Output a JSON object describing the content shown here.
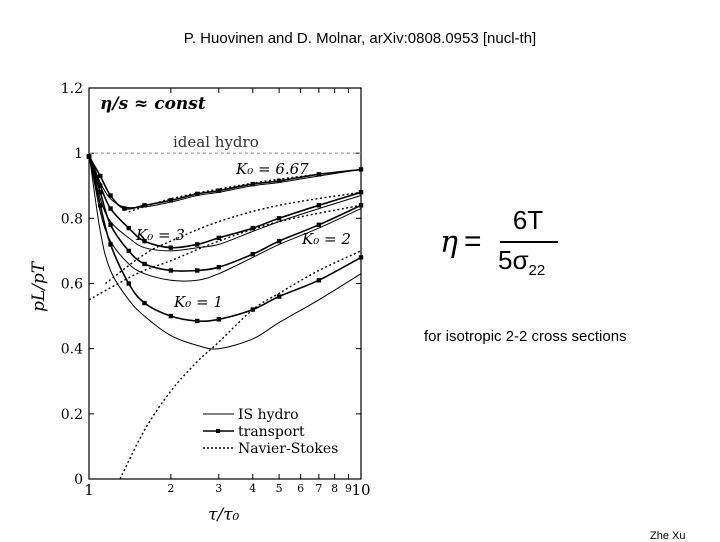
{
  "header": {
    "citation": "P. Huovinen and D. Molnar, arXiv:0808.0953 [nucl-th]"
  },
  "formula": {
    "lhs": "η",
    "eq": "=",
    "numerator": "6T",
    "denominator_base": "5σ",
    "denominator_sub": "22"
  },
  "note": "for isotropic 2-2 cross sections",
  "footer": "Zhe Xu",
  "chart_data": {
    "type": "line",
    "title": "η/s ≈ const",
    "xlabel": "τ/τ₀",
    "ylabel": "pL/pT",
    "xscale": "log",
    "xlim": [
      1,
      10
    ],
    "ylim": [
      0,
      1.2
    ],
    "x_ticks": [
      "1",
      "2",
      "3",
      "4",
      "5",
      "6",
      "7",
      "8",
      "9",
      "10"
    ],
    "y_ticks": [
      "0",
      "0.2",
      "0.4",
      "0.6",
      "0.8",
      "1",
      "1.2"
    ],
    "annotations": {
      "ideal": "ideal hydro",
      "k667": "K₀ = 6.67",
      "k3": "K₀ = 3",
      "k2": "K₀ = 2",
      "k1": "K₀ = 1"
    },
    "reference_line": {
      "y": 1,
      "label": "ideal hydro"
    },
    "legend": {
      "placement": "bottom-right",
      "entries": [
        "IS hydro",
        "transport",
        "Navier-Stokes"
      ]
    },
    "series": [
      {
        "kind": "IS hydro",
        "K0": "6.67",
        "points": [
          [
            1,
            1.0
          ],
          [
            1.1,
            0.91
          ],
          [
            1.2,
            0.86
          ],
          [
            1.35,
            0.835
          ],
          [
            1.6,
            0.835
          ],
          [
            2,
            0.85
          ],
          [
            2.5,
            0.87
          ],
          [
            3,
            0.88
          ],
          [
            4,
            0.9
          ],
          [
            5,
            0.91
          ],
          [
            7,
            0.93
          ],
          [
            10,
            0.95
          ]
        ]
      },
      {
        "kind": "transport",
        "K0": "6.67",
        "points": [
          [
            1,
            0.99
          ],
          [
            1.1,
            0.93
          ],
          [
            1.2,
            0.87
          ],
          [
            1.35,
            0.83
          ],
          [
            1.6,
            0.84
          ],
          [
            2,
            0.855
          ],
          [
            2.5,
            0.875
          ],
          [
            3,
            0.885
          ],
          [
            4,
            0.905
          ],
          [
            5,
            0.915
          ],
          [
            7,
            0.935
          ],
          [
            10,
            0.95
          ]
        ]
      },
      {
        "kind": "Navier-Stokes",
        "K0": "6.67",
        "points": [
          [
            1.4,
            0.82
          ],
          [
            2,
            0.86
          ],
          [
            3,
            0.89
          ],
          [
            5,
            0.92
          ],
          [
            10,
            0.95
          ]
        ]
      },
      {
        "kind": "IS hydro",
        "K0": "3",
        "points": [
          [
            1,
            1.0
          ],
          [
            1.1,
            0.86
          ],
          [
            1.2,
            0.79
          ],
          [
            1.4,
            0.74
          ],
          [
            1.6,
            0.71
          ],
          [
            2,
            0.7
          ],
          [
            2.5,
            0.71
          ],
          [
            3,
            0.72
          ],
          [
            4,
            0.76
          ],
          [
            5,
            0.79
          ],
          [
            7,
            0.83
          ],
          [
            10,
            0.87
          ]
        ]
      },
      {
        "kind": "transport",
        "K0": "3",
        "points": [
          [
            1,
            0.99
          ],
          [
            1.1,
            0.9
          ],
          [
            1.2,
            0.83
          ],
          [
            1.4,
            0.77
          ],
          [
            1.6,
            0.73
          ],
          [
            2,
            0.71
          ],
          [
            2.5,
            0.72
          ],
          [
            3,
            0.74
          ],
          [
            4,
            0.77
          ],
          [
            5,
            0.8
          ],
          [
            7,
            0.84
          ],
          [
            10,
            0.88
          ]
        ]
      },
      {
        "kind": "Navier-Stokes",
        "K0": "3",
        "points": [
          [
            1.15,
            0.6
          ],
          [
            1.6,
            0.69
          ],
          [
            2,
            0.73
          ],
          [
            3,
            0.79
          ],
          [
            5,
            0.84
          ],
          [
            10,
            0.88
          ]
        ]
      },
      {
        "kind": "IS hydro",
        "K0": "2",
        "points": [
          [
            1,
            1.0
          ],
          [
            1.1,
            0.82
          ],
          [
            1.2,
            0.73
          ],
          [
            1.4,
            0.66
          ],
          [
            1.6,
            0.63
          ],
          [
            2,
            0.61
          ],
          [
            2.5,
            0.61
          ],
          [
            3,
            0.63
          ],
          [
            4,
            0.68
          ],
          [
            5,
            0.72
          ],
          [
            7,
            0.77
          ],
          [
            10,
            0.83
          ]
        ]
      },
      {
        "kind": "transport",
        "K0": "2",
        "points": [
          [
            1,
            0.99
          ],
          [
            1.1,
            0.88
          ],
          [
            1.2,
            0.78
          ],
          [
            1.4,
            0.7
          ],
          [
            1.6,
            0.66
          ],
          [
            2,
            0.64
          ],
          [
            2.5,
            0.64
          ],
          [
            3,
            0.65
          ],
          [
            4,
            0.69
          ],
          [
            5,
            0.73
          ],
          [
            7,
            0.78
          ],
          [
            10,
            0.84
          ]
        ]
      },
      {
        "kind": "Navier-Stokes",
        "K0": "2",
        "points": [
          [
            1,
            0.55
          ],
          [
            1.5,
            0.63
          ],
          [
            2,
            0.67
          ],
          [
            3,
            0.73
          ],
          [
            5,
            0.79
          ],
          [
            10,
            0.84
          ]
        ]
      },
      {
        "kind": "IS hydro",
        "K0": "1",
        "points": [
          [
            1,
            1.0
          ],
          [
            1.1,
            0.76
          ],
          [
            1.2,
            0.64
          ],
          [
            1.4,
            0.55
          ],
          [
            1.6,
            0.5
          ],
          [
            2,
            0.44
          ],
          [
            2.5,
            0.41
          ],
          [
            3,
            0.4
          ],
          [
            4,
            0.43
          ],
          [
            5,
            0.48
          ],
          [
            7,
            0.55
          ],
          [
            10,
            0.63
          ]
        ]
      },
      {
        "kind": "transport",
        "K0": "1",
        "points": [
          [
            1,
            0.99
          ],
          [
            1.1,
            0.84
          ],
          [
            1.2,
            0.72
          ],
          [
            1.4,
            0.6
          ],
          [
            1.6,
            0.54
          ],
          [
            2,
            0.5
          ],
          [
            2.5,
            0.485
          ],
          [
            3,
            0.49
          ],
          [
            4,
            0.52
          ],
          [
            5,
            0.56
          ],
          [
            7,
            0.61
          ],
          [
            10,
            0.68
          ]
        ]
      },
      {
        "kind": "Navier-Stokes",
        "K0": "1",
        "points": [
          [
            1.3,
            0.0
          ],
          [
            1.6,
            0.15
          ],
          [
            2,
            0.27
          ],
          [
            2.5,
            0.36
          ],
          [
            3,
            0.42
          ],
          [
            4,
            0.52
          ],
          [
            5,
            0.57
          ],
          [
            7,
            0.64
          ],
          [
            10,
            0.7
          ]
        ]
      }
    ]
  }
}
